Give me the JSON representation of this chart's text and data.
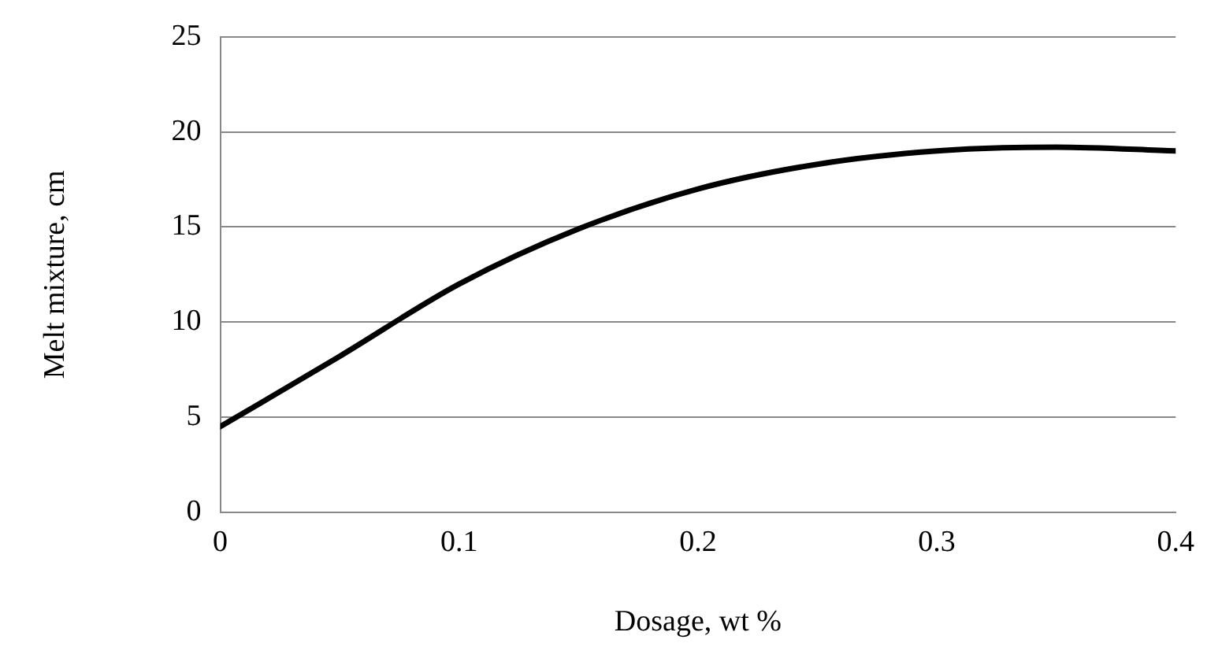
{
  "chart_data": {
    "type": "line",
    "xlabel": "Dosage, wt %",
    "ylabel": "Melt mixture, cm",
    "x": [
      0,
      0.05,
      0.1,
      0.15,
      0.2,
      0.25,
      0.3,
      0.35,
      0.4
    ],
    "series": [
      {
        "color": "#000000",
        "values": [
          4.5,
          8.2,
          12,
          14.9,
          17,
          18.3,
          19,
          19.2,
          19
        ]
      }
    ],
    "xlim": [
      0,
      0.4
    ],
    "xticks": [
      0,
      0.1,
      0.2,
      0.3,
      0.4
    ],
    "ylim": [
      0,
      25
    ],
    "yticks": [
      0,
      5,
      10,
      15,
      20,
      25
    ],
    "grid": "y",
    "legend": false,
    "marker": "none",
    "line_style": "solid"
  }
}
